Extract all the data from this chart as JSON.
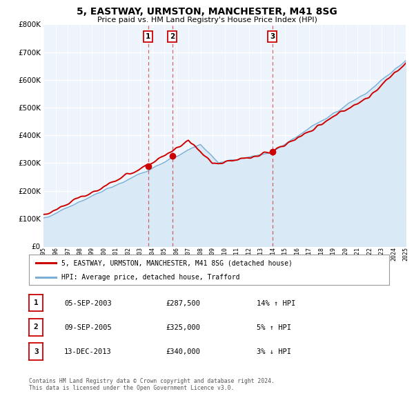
{
  "title": "5, EASTWAY, URMSTON, MANCHESTER, M41 8SG",
  "subtitle": "Price paid vs. HM Land Registry's House Price Index (HPI)",
  "hpi_label": "HPI: Average price, detached house, Trafford",
  "property_label": "5, EASTWAY, URMSTON, MANCHESTER, M41 8SG (detached house)",
  "red_color": "#cc0000",
  "blue_color": "#7aaed6",
  "blue_fill": "#d6e8f5",
  "background_color": "#eef4fb",
  "grid_color": "#ffffff",
  "sale_points": [
    {
      "year": 2003.67,
      "price": 287500,
      "label": "1",
      "date": "05-SEP-2003",
      "pct": "14%",
      "direction": "↑"
    },
    {
      "year": 2005.67,
      "price": 325000,
      "label": "2",
      "date": "09-SEP-2005",
      "pct": "5%",
      "direction": "↑"
    },
    {
      "year": 2013.95,
      "price": 340000,
      "label": "3",
      "date": "13-DEC-2013",
      "pct": "3%",
      "direction": "↓"
    }
  ],
  "xmin": 1995,
  "xmax": 2025,
  "ymin": 0,
  "ymax": 800000,
  "yticks": [
    0,
    100000,
    200000,
    300000,
    400000,
    500000,
    600000,
    700000,
    800000
  ],
  "footnote": "Contains HM Land Registry data © Crown copyright and database right 2024.\nThis data is licensed under the Open Government Licence v3.0."
}
